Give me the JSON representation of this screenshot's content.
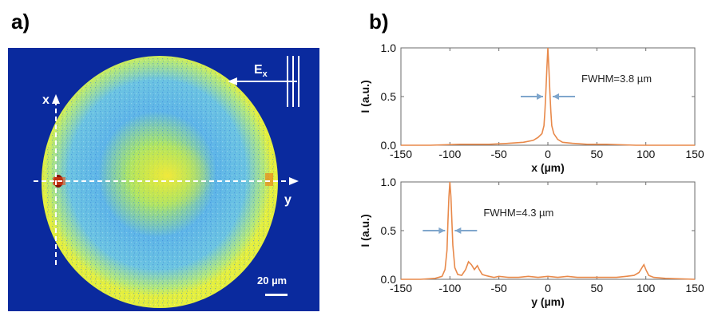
{
  "panel_a": {
    "label": "a)",
    "field_label": "E",
    "field_sub": "x",
    "axis_x": "x",
    "axis_y": "y",
    "scale_bar": "20 µm"
  },
  "panel_b": {
    "label": "b)"
  },
  "chart_data": [
    {
      "type": "line",
      "xlabel": "x (µm)",
      "ylabel": "I (a.u.)",
      "xlim": [
        -150,
        150
      ],
      "ylim": [
        0,
        1
      ],
      "xticks": [
        -150,
        -100,
        -50,
        0,
        50,
        100,
        150
      ],
      "yticks": [
        "0.0",
        "0.5",
        "1.0"
      ],
      "annotation": "FWHM=3.8 µm",
      "color": "#e8894a",
      "x": [
        -150,
        -120,
        -90,
        -60,
        -40,
        -25,
        -15,
        -10,
        -6,
        -4,
        -3,
        -2,
        -1,
        0,
        1,
        2,
        3,
        4,
        6,
        10,
        15,
        25,
        40,
        60,
        90,
        120,
        150
      ],
      "y": [
        0.0,
        0.0,
        0.01,
        0.01,
        0.02,
        0.03,
        0.05,
        0.08,
        0.12,
        0.2,
        0.35,
        0.55,
        0.8,
        1.0,
        0.8,
        0.55,
        0.35,
        0.2,
        0.12,
        0.06,
        0.03,
        0.02,
        0.01,
        0.01,
        0.0,
        0.0,
        0.0
      ]
    },
    {
      "type": "line",
      "xlabel": "y (µm)",
      "ylabel": "I (a.u.)",
      "xlim": [
        -150,
        150
      ],
      "ylim": [
        0,
        1
      ],
      "xticks": [
        -150,
        -100,
        -50,
        0,
        50,
        100,
        150
      ],
      "yticks": [
        "0.0",
        "0.5",
        "1.0"
      ],
      "annotation": "FWHM=4.3 µm",
      "color": "#e8894a",
      "x": [
        -150,
        -130,
        -115,
        -108,
        -105,
        -103,
        -102,
        -101,
        -100,
        -99,
        -98,
        -97,
        -95,
        -92,
        -88,
        -84,
        -81,
        -78,
        -75,
        -72,
        -70,
        -67,
        -64,
        -60,
        -55,
        -50,
        -40,
        -30,
        -20,
        -10,
        0,
        10,
        20,
        30,
        40,
        50,
        60,
        70,
        80,
        88,
        93,
        96,
        98,
        100,
        103,
        108,
        120,
        150
      ],
      "y": [
        0.0,
        0.0,
        0.01,
        0.03,
        0.1,
        0.3,
        0.6,
        0.85,
        1.0,
        0.85,
        0.6,
        0.35,
        0.12,
        0.05,
        0.04,
        0.1,
        0.18,
        0.15,
        0.1,
        0.14,
        0.1,
        0.05,
        0.04,
        0.03,
        0.02,
        0.03,
        0.02,
        0.02,
        0.03,
        0.02,
        0.03,
        0.02,
        0.03,
        0.02,
        0.02,
        0.02,
        0.02,
        0.02,
        0.03,
        0.04,
        0.07,
        0.12,
        0.15,
        0.1,
        0.04,
        0.02,
        0.01,
        0.0
      ]
    }
  ]
}
